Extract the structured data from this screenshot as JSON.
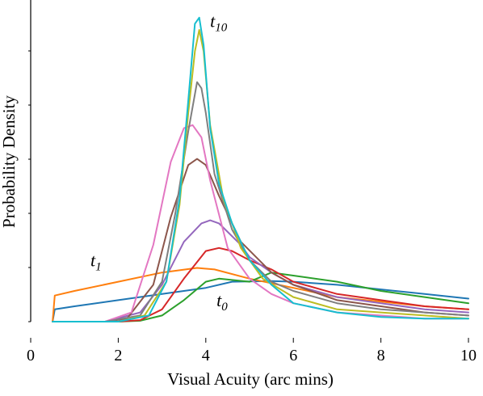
{
  "chart_data": {
    "type": "line",
    "title": "",
    "xlabel": "Visual Acuity (arc mins)",
    "ylabel": "Probability Density",
    "xlim": [
      0,
      10
    ],
    "ylim": [
      0,
      1.0
    ],
    "x_ticks": [
      "0",
      "2",
      "4",
      "6",
      "8",
      "10"
    ],
    "y_ticks_labeled": false,
    "grid": false,
    "legend": "none",
    "annotations": [
      {
        "base": "t",
        "sub": "10",
        "x": 3.95,
        "y": 0.97
      },
      {
        "base": "t",
        "sub": "1",
        "x": 1.55,
        "y": 0.17
      },
      {
        "base": "t",
        "sub": "0",
        "x": 3.95,
        "y": 0.05
      }
    ],
    "series": [
      {
        "color": "#1f77b4",
        "x": [
          0.5,
          0.55,
          1,
          2,
          3,
          4,
          4.6,
          5.5,
          6,
          7,
          8,
          9,
          10
        ],
        "y": [
          0,
          0.04,
          0.05,
          0.07,
          0.09,
          0.11,
          0.13,
          0.132,
          0.13,
          0.12,
          0.105,
          0.09,
          0.075
        ]
      },
      {
        "color": "#ff7f0e",
        "x": [
          0.5,
          0.55,
          1,
          2,
          3,
          3.8,
          4.2,
          5,
          6,
          7,
          8,
          9,
          10
        ],
        "y": [
          0,
          0.085,
          0.1,
          0.13,
          0.16,
          0.175,
          0.17,
          0.14,
          0.11,
          0.08,
          0.065,
          0.05,
          0.04
        ]
      },
      {
        "color": "#2ca02c",
        "x": [
          0.5,
          2,
          2.5,
          3,
          3.5,
          4,
          4.3,
          5,
          5.5,
          6,
          7,
          8,
          9,
          10
        ],
        "y": [
          0,
          0,
          0.003,
          0.02,
          0.07,
          0.13,
          0.14,
          0.13,
          0.16,
          0.15,
          0.13,
          0.1,
          0.08,
          0.06
        ]
      },
      {
        "color": "#d62728",
        "x": [
          0.5,
          2,
          2.5,
          3,
          3.5,
          4,
          4.3,
          4.6,
          5,
          5.5,
          6,
          7,
          8,
          9,
          10
        ],
        "y": [
          0,
          0,
          0.005,
          0.04,
          0.14,
          0.23,
          0.24,
          0.23,
          0.2,
          0.17,
          0.13,
          0.09,
          0.07,
          0.05,
          0.04
        ]
      },
      {
        "color": "#9467bd",
        "x": [
          0.5,
          1.7,
          2.5,
          3,
          3.5,
          3.9,
          4.1,
          4.3,
          4.8,
          5,
          5.5,
          6,
          7,
          8,
          9,
          10
        ],
        "y": [
          0,
          0,
          0.03,
          0.12,
          0.26,
          0.32,
          0.33,
          0.32,
          0.25,
          0.21,
          0.16,
          0.12,
          0.08,
          0.06,
          0.04,
          0.03
        ]
      },
      {
        "color": "#8c564b",
        "x": [
          0.5,
          1.7,
          2.2,
          2.8,
          3.2,
          3.6,
          3.8,
          4,
          4.3,
          4.8,
          5.5,
          6,
          7,
          8,
          9,
          10
        ],
        "y": [
          0,
          0,
          0.01,
          0.12,
          0.34,
          0.51,
          0.53,
          0.51,
          0.41,
          0.26,
          0.16,
          0.12,
          0.07,
          0.05,
          0.03,
          0.02
        ]
      },
      {
        "color": "#e377c2",
        "x": [
          0.5,
          1.7,
          2.3,
          2.8,
          3.2,
          3.5,
          3.7,
          3.9,
          4.1,
          4.5,
          5,
          5.5,
          6,
          7,
          8,
          9,
          10
        ],
        "y": [
          0,
          0,
          0.03,
          0.25,
          0.52,
          0.63,
          0.64,
          0.6,
          0.46,
          0.24,
          0.14,
          0.09,
          0.06,
          0.03,
          0.02,
          0.01,
          0.01
        ]
      },
      {
        "color": "#7f7f7f",
        "x": [
          0.5,
          1.7,
          2.5,
          3,
          3.3,
          3.6,
          3.8,
          3.9,
          4,
          4.2,
          4.6,
          5,
          5.5,
          6,
          7,
          8,
          9,
          10
        ],
        "y": [
          0,
          0,
          0.02,
          0.13,
          0.35,
          0.62,
          0.78,
          0.76,
          0.68,
          0.48,
          0.3,
          0.2,
          0.13,
          0.1,
          0.06,
          0.04,
          0.03,
          0.02
        ]
      },
      {
        "color": "#bcbd22",
        "x": [
          0.5,
          2,
          2.6,
          3.1,
          3.4,
          3.6,
          3.75,
          3.85,
          3.95,
          4.1,
          4.4,
          4.8,
          5.3,
          6,
          7,
          8,
          9,
          10
        ],
        "y": [
          0,
          0,
          0.02,
          0.13,
          0.38,
          0.68,
          0.88,
          0.95,
          0.88,
          0.64,
          0.4,
          0.24,
          0.14,
          0.08,
          0.04,
          0.03,
          0.02,
          0.01
        ]
      },
      {
        "color": "#17becf",
        "x": [
          0.5,
          2,
          2.7,
          3.1,
          3.4,
          3.6,
          3.75,
          3.85,
          3.95,
          4.1,
          4.3,
          4.6,
          5,
          5.5,
          6,
          7,
          8,
          9,
          10
        ],
        "y": [
          0,
          0,
          0.02,
          0.13,
          0.4,
          0.72,
          0.97,
          0.99,
          0.9,
          0.63,
          0.45,
          0.32,
          0.2,
          0.12,
          0.06,
          0.03,
          0.015,
          0.01,
          0.01
        ]
      }
    ]
  }
}
